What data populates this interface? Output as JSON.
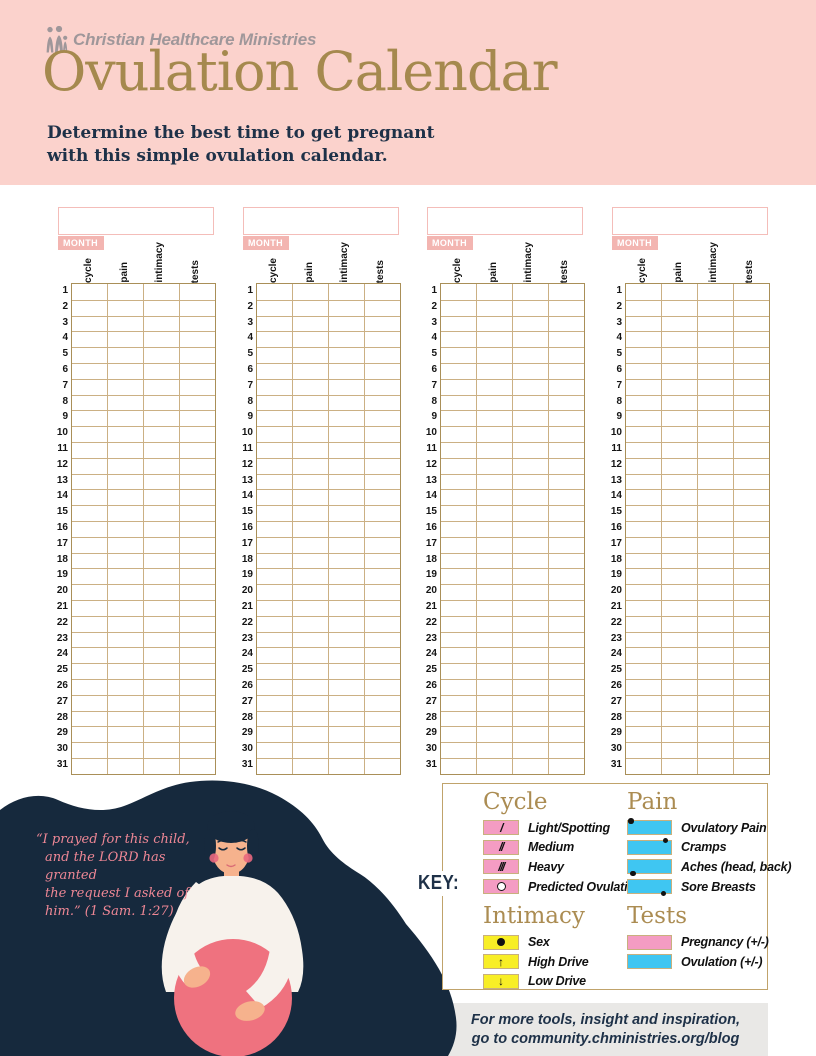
{
  "header": {
    "brand": "Christian Healthcare Ministries",
    "title": "Ovulation Calendar",
    "subtitle_lines": [
      "Determine the best time to get pregnant",
      "with this simple ovulation calendar."
    ]
  },
  "calendar": {
    "month_label": "MONTH",
    "column_headers": [
      "cycle",
      "pain",
      "intimacy",
      "tests"
    ],
    "days": [
      1,
      2,
      3,
      4,
      5,
      6,
      7,
      8,
      9,
      10,
      11,
      12,
      13,
      14,
      15,
      16,
      17,
      18,
      19,
      20,
      21,
      22,
      23,
      24,
      25,
      26,
      27,
      28,
      29,
      30,
      31
    ],
    "instances": [
      {
        "month_value": ""
      },
      {
        "month_value": ""
      },
      {
        "month_value": ""
      },
      {
        "month_value": ""
      }
    ]
  },
  "key": {
    "label": "KEY:",
    "sections": [
      {
        "title": "Cycle",
        "swatch_color": "#f49cc3",
        "swatch_size": "normal",
        "items": [
          {
            "symbol": "slash-single",
            "label": "Light/Spotting"
          },
          {
            "symbol": "slash-double",
            "label": "Medium"
          },
          {
            "symbol": "slash-triple",
            "label": "Heavy"
          },
          {
            "symbol": "circle-outline",
            "label": "Predicted Ovulation"
          }
        ]
      },
      {
        "title": "Pain",
        "swatch_color": "#3fc6f2",
        "swatch_size": "wide",
        "items": [
          {
            "symbol": "dot-top-left",
            "label": "Ovulatory Pain"
          },
          {
            "symbol": "dot-top-right",
            "label": "Cramps"
          },
          {
            "symbol": "dot-bottom-left",
            "label": "Aches (head, back)"
          },
          {
            "symbol": "dot-bottom-right",
            "label": "Sore Breasts"
          }
        ]
      },
      {
        "title": "Intimacy",
        "swatch_color": "#f8ee26",
        "swatch_size": "normal",
        "items": [
          {
            "symbol": "dot-center",
            "label": "Sex"
          },
          {
            "symbol": "arrow-up",
            "label": "High Drive"
          },
          {
            "symbol": "arrow-down",
            "label": "Low Drive"
          }
        ]
      },
      {
        "title": "Tests",
        "swatch_size": "wide",
        "items": [
          {
            "symbol": "none",
            "swatch_color": "#f49cc3",
            "label": "Pregnancy (+/-)"
          },
          {
            "symbol": "none",
            "swatch_color": "#3fc6f2",
            "label": "Ovulation (+/-)"
          }
        ]
      }
    ]
  },
  "illustration": {
    "description": "pregnant-woman-with-flowing-hair",
    "quote_lines": [
      "“I prayed for this child,",
      "and the LORD has granted",
      "the request I asked of",
      "him.” (1 Sam. 1:27)"
    ]
  },
  "footer": {
    "lines": [
      "For more tools, insight and inspiration,",
      "go to community.chministries.org/blog"
    ]
  },
  "colors": {
    "hero_pink": "#fbd2cc",
    "gold": "#a5894e",
    "navy": "#1e3148",
    "grid_tan": "#cbb084",
    "badge_pink": "#f3b5b1",
    "swatch_pink": "#f49cc3",
    "swatch_cyan": "#3fc6f2",
    "swatch_yellow": "#f8ee26",
    "blob_navy": "#16293d",
    "quote_pink": "#ee8795",
    "footer_gray": "#e9e8e6"
  }
}
